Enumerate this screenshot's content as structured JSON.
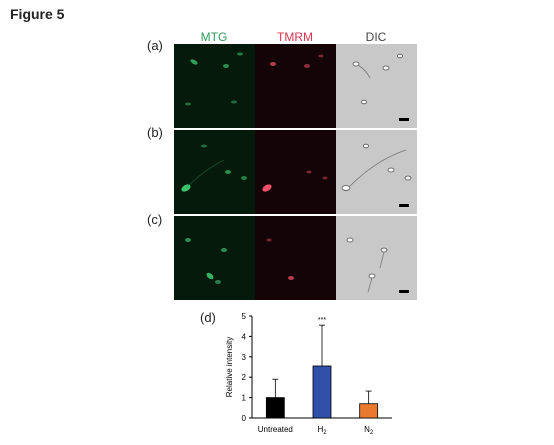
{
  "figure_title": "Figure 5",
  "columns": [
    "MTG",
    "TMRM",
    "DIC"
  ],
  "column_colors": [
    "#2e9c5a",
    "#d8364c",
    "#444444"
  ],
  "rows": [
    "(a)",
    "(b)",
    "(c)"
  ],
  "chart_panel_label": "(d)",
  "chart_data": {
    "type": "bar",
    "categories": [
      "Untreated",
      "H2",
      "N2"
    ],
    "category_labels": [
      {
        "main": "Untreated",
        "sub": ""
      },
      {
        "main": "H",
        "sub": "2"
      },
      {
        "main": "N",
        "sub": "2"
      }
    ],
    "values": [
      1.0,
      2.55,
      0.7
    ],
    "errors": [
      0.9,
      2.0,
      0.62
    ],
    "colors": [
      "#000000",
      "#2f4fa8",
      "#e8792f"
    ],
    "annotations": [
      "",
      "***",
      ""
    ],
    "ylabel": "Relative intensity",
    "ylim": [
      0,
      5
    ],
    "yticks": [
      0,
      1,
      2,
      3,
      4,
      5
    ]
  }
}
